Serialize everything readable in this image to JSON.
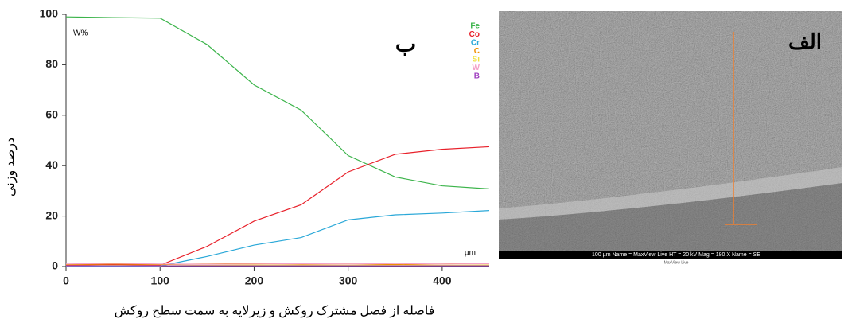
{
  "chart_data": {
    "type": "line",
    "panel_label": "ب",
    "y_unit_label": "W%",
    "x_unit_label": "µm",
    "ylabel": "درصد وزنی",
    "xlabel": "فاصله از فصل مشترک روکش و زیرلایه به سمت سطح روکش",
    "x": [
      0,
      50,
      100,
      150,
      200,
      250,
      300,
      350,
      400,
      450
    ],
    "series": [
      {
        "name": "Fe",
        "color": "#3cb44b",
        "values": [
          99,
          98.7,
          98.5,
          88,
          72,
          62,
          44,
          35.5,
          32,
          30.8
        ]
      },
      {
        "name": "Co",
        "color": "#e8202a",
        "values": [
          0.5,
          0.8,
          0.5,
          8,
          18,
          24.5,
          37.5,
          44.5,
          46.5,
          47.5
        ]
      },
      {
        "name": "Cr",
        "color": "#2aa8d8",
        "values": [
          0.2,
          0.2,
          0.2,
          4,
          8.5,
          11.5,
          18.5,
          20.5,
          21.2,
          22.2
        ]
      },
      {
        "name": "C",
        "color": "#f09000",
        "values": [
          0.8,
          1,
          0.8,
          1,
          1.2,
          0.9,
          1,
          0.8,
          1,
          1.4
        ]
      },
      {
        "name": "Si",
        "color": "#f0e040",
        "values": [
          0.3,
          0.4,
          0.3,
          0.5,
          0.6,
          0.5,
          0.5,
          0.4,
          0.5,
          0.6
        ]
      },
      {
        "name": "W",
        "color": "#f4a0c8",
        "values": [
          1,
          1.3,
          1,
          0.9,
          1,
          1.1,
          1,
          1.2,
          1,
          1.1
        ]
      },
      {
        "name": "B",
        "color": "#a040c0",
        "values": [
          0.3,
          0.3,
          0.3,
          0.3,
          0.3,
          0.3,
          0.3,
          0.3,
          0.3,
          0.3
        ]
      }
    ],
    "xlim": [
      0,
      450
    ],
    "ylim": [
      0,
      100
    ],
    "xticks": [
      0,
      100,
      200,
      300,
      400
    ],
    "yticks": [
      0,
      20,
      40,
      60,
      80,
      100
    ],
    "grid": false,
    "legend": "upper right"
  },
  "image": {
    "label": "الف",
    "scale_bar": "100 µm   Name = MaxView Live   HT = 20 kV   Mag = 180 X   Name = SE",
    "caption": "MaxView Live"
  }
}
